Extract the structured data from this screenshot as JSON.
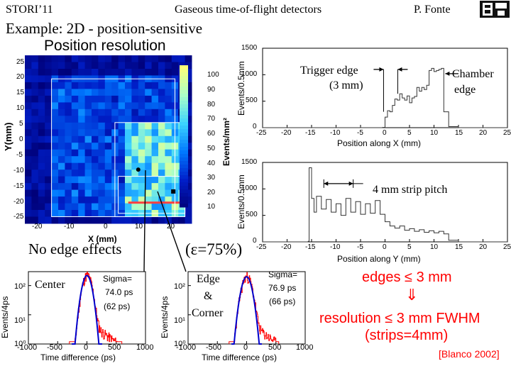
{
  "header": {
    "conference": "STORI’11",
    "topic": "Gaseous time-of-flight detectors",
    "author": "P. Fonte"
  },
  "title": {
    "line1": "Example: 2D - position-sensitive",
    "line2": "Position resolution"
  },
  "annotations": {
    "no_edge_effects": "No edge effects",
    "efficiency": "(ε=75%)",
    "center": "Center",
    "edge_line1": "Edge",
    "edge_line2": "&",
    "edge_line3": "Corner",
    "trigger_edge_line1": "Trigger edge",
    "trigger_edge_line2": "(3 mm)",
    "chamber_edge_line1": "Chamber",
    "chamber_edge_line2": "edge",
    "strip_pitch": "4 mm strip pitch"
  },
  "summary": {
    "line1": "edges ≤ 3 mm",
    "arrow": "⇓",
    "line2": "resolution ≤ 3 mm FWHM",
    "line3": "(strips=4mm)",
    "citation": "[Blanco 2002]"
  },
  "colors": {
    "accent_red": "#ff0000",
    "fit_blue": "#0000cc",
    "map_background": "#00007a"
  },
  "chart_data": [
    {
      "type": "heatmap",
      "name": "2D position map",
      "xlabel": "X (mm)",
      "ylabel": "Y(mm)",
      "x_ticks": [
        "-20",
        "-10",
        "0",
        "10",
        "20"
      ],
      "y_ticks": [
        "25",
        "20",
        "15",
        "10",
        "5",
        "0",
        "-5",
        "-10",
        "-15",
        "-20",
        "-25"
      ],
      "xlim": [
        -25,
        25
      ],
      "ylim": [
        -25,
        25
      ],
      "colorbar_label": "Events/mm²",
      "colorbar_ticks": [
        "100",
        "90",
        "80",
        "70",
        "60",
        "50",
        "40",
        "30",
        "20",
        "10"
      ],
      "colorbar_range": [
        0,
        105
      ]
    },
    {
      "type": "line",
      "name": "Position along X",
      "xlabel": "Position along X (mm)",
      "ylabel": "Events/0.5mm",
      "xlim": [
        -25,
        25
      ],
      "ylim": [
        0,
        1500
      ],
      "x_ticks": [
        "-25",
        "-20",
        "-15",
        "-10",
        "-5",
        "0",
        "5",
        "10",
        "15",
        "20",
        "25"
      ],
      "y_ticks": [
        "1500",
        "1000",
        "500",
        "0"
      ],
      "x": [
        -25,
        -24,
        -23,
        -22,
        -21,
        -20,
        -19,
        -18,
        -17,
        -16,
        -15,
        -14,
        -13,
        -12,
        -11,
        -10,
        -9,
        -8,
        -7,
        -6,
        -5,
        -4,
        -3,
        -2,
        -1,
        -0.5,
        0,
        0.5,
        1,
        1.5,
        2,
        2.5,
        3,
        3.5,
        4,
        4.5,
        5,
        5.5,
        6,
        6.5,
        7,
        7.5,
        8,
        8.5,
        9,
        9.5,
        10,
        10.5,
        11,
        11.5,
        12,
        13,
        15,
        20,
        25
      ],
      "values": [
        0,
        0,
        0,
        0,
        0,
        0,
        0,
        0,
        0,
        0,
        0,
        0,
        0,
        0,
        0,
        0,
        0,
        0,
        0,
        0,
        0,
        0,
        0,
        0,
        0,
        5,
        200,
        320,
        300,
        420,
        540,
        520,
        640,
        560,
        520,
        600,
        470,
        560,
        590,
        760,
        690,
        760,
        720,
        800,
        1080,
        1120,
        1060,
        1080,
        1100,
        1120,
        300,
        20,
        0,
        0,
        0
      ]
    },
    {
      "type": "line",
      "name": "Position along Y",
      "xlabel": "Position along Y (mm)",
      "ylabel": "Events/0.5mm",
      "xlim": [
        -25,
        25
      ],
      "ylim": [
        0,
        1500
      ],
      "x_ticks": [
        "-25",
        "-20",
        "-15",
        "-10",
        "-5",
        "0",
        "5",
        "10",
        "15",
        "20",
        "25"
      ],
      "y_ticks": [
        "1500",
        "1000",
        "500",
        "0"
      ],
      "x": [
        -25,
        -20,
        -16,
        -15.7,
        -15.5,
        -15,
        -14.5,
        -14,
        -13,
        -12,
        -11,
        -10,
        -9,
        -8,
        -7,
        -6,
        -5,
        -4,
        -3,
        -2,
        -1,
        0,
        1,
        2,
        3,
        4,
        5,
        6,
        7,
        8,
        9,
        10,
        11,
        12,
        13,
        15,
        20,
        25
      ],
      "values": [
        0,
        0,
        0,
        10,
        1400,
        820,
        560,
        860,
        620,
        800,
        560,
        720,
        500,
        820,
        560,
        760,
        520,
        720,
        540,
        780,
        520,
        380,
        300,
        260,
        300,
        220,
        250,
        200,
        230,
        180,
        210,
        170,
        200,
        150,
        30,
        0,
        0,
        0
      ]
    },
    {
      "type": "line",
      "name": "Timing - Center",
      "xlabel": "Time difference (ps)",
      "ylabel": "Events/4ps",
      "xlim": [
        -1000,
        1000
      ],
      "y_scale": "log",
      "ylim": [
        1,
        300
      ],
      "x_ticks": [
        "-1000",
        "-500",
        "0",
        "500",
        "1000"
      ],
      "y_ticks": [
        "10²",
        "10¹",
        "10⁰"
      ],
      "sigma_label": "Sigma=",
      "sigma_value": "74.0 ps",
      "sigma_paren": "(62 ps)",
      "fit_sigma_ps": 62,
      "fit_peak": 220,
      "tail_end_ps": 600
    },
    {
      "type": "line",
      "name": "Timing - Edge & Corner",
      "xlabel": "Time difference (ps)",
      "ylabel": "Events/4ps",
      "xlim": [
        -1000,
        1000
      ],
      "y_scale": "log",
      "ylim": [
        1,
        300
      ],
      "x_ticks": [
        "-1000",
        "-500",
        "0",
        "500",
        "1000"
      ],
      "y_ticks": [
        "10²",
        "10¹",
        "10⁰"
      ],
      "sigma_label": "Sigma=",
      "sigma_value": "76.9 ps",
      "sigma_paren": "(66 ps)",
      "fit_sigma_ps": 66,
      "fit_peak": 200,
      "tail_end_ps": 550
    }
  ]
}
